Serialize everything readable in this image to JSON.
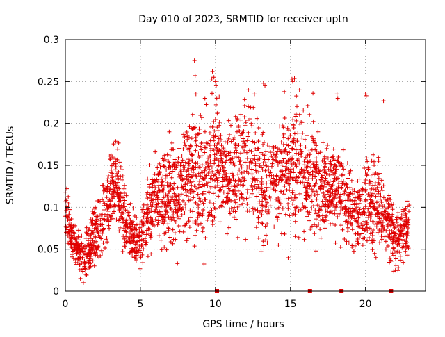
{
  "chart_data": {
    "type": "scatter",
    "title": "Day 010 of 2023, SRMTID for receiver uptn",
    "xlabel": "GPS time / hours",
    "ylabel": "SRMTID / TECUs",
    "xlim": [
      0,
      24
    ],
    "ylim": [
      0,
      0.3
    ],
    "xticks": [
      0,
      5,
      10,
      15,
      20
    ],
    "xtick_labels": [
      "0",
      "5",
      "10",
      "15",
      "20"
    ],
    "yticks": [
      0,
      0.05,
      0.1,
      0.15,
      0.2,
      0.25,
      0.3
    ],
    "ytick_labels": [
      "0",
      "0.05",
      "0.1",
      "0.15",
      "0.2",
      "0.25",
      "0.3"
    ],
    "grid": true,
    "marker": "+",
    "marker_color": "#e00000",
    "zero_markers_x": [
      10.1,
      16.3,
      18.4,
      21.7
    ],
    "envelope": {
      "description": "Approximate local centre and spread of the dense point cloud, sampled every 0.5 h (data units)",
      "x": [
        0,
        0.5,
        1,
        1.5,
        2,
        2.5,
        3,
        3.5,
        4,
        4.5,
        5,
        5.5,
        6,
        6.5,
        7,
        7.5,
        8,
        8.5,
        9,
        9.5,
        10,
        10.5,
        11,
        11.5,
        12,
        12.5,
        13,
        13.5,
        14,
        14.5,
        15,
        15.5,
        16,
        16.5,
        17,
        17.5,
        18,
        18.5,
        19,
        19.5,
        20,
        20.5,
        21,
        21.5,
        22,
        22.5,
        22.9
      ],
      "center": [
        0.095,
        0.06,
        0.04,
        0.045,
        0.065,
        0.08,
        0.12,
        0.13,
        0.08,
        0.06,
        0.065,
        0.09,
        0.11,
        0.11,
        0.12,
        0.115,
        0.13,
        0.14,
        0.12,
        0.14,
        0.16,
        0.14,
        0.13,
        0.14,
        0.16,
        0.15,
        0.12,
        0.13,
        0.13,
        0.14,
        0.14,
        0.15,
        0.13,
        0.14,
        0.12,
        0.12,
        0.12,
        0.11,
        0.1,
        0.09,
        0.1,
        0.11,
        0.1,
        0.08,
        0.065,
        0.07,
        0.08
      ],
      "spread": [
        0.02,
        0.015,
        0.015,
        0.02,
        0.025,
        0.03,
        0.03,
        0.03,
        0.025,
        0.02,
        0.025,
        0.03,
        0.035,
        0.035,
        0.035,
        0.035,
        0.04,
        0.05,
        0.045,
        0.05,
        0.05,
        0.04,
        0.04,
        0.045,
        0.05,
        0.045,
        0.04,
        0.04,
        0.04,
        0.045,
        0.05,
        0.05,
        0.04,
        0.04,
        0.035,
        0.035,
        0.035,
        0.035,
        0.03,
        0.03,
        0.035,
        0.035,
        0.03,
        0.025,
        0.02,
        0.02,
        0.02
      ]
    },
    "outliers": [
      {
        "x": 8.6,
        "y": 0.275
      },
      {
        "x": 8.65,
        "y": 0.257
      },
      {
        "x": 8.7,
        "y": 0.235
      },
      {
        "x": 9.3,
        "y": 0.23
      },
      {
        "x": 9.8,
        "y": 0.262
      },
      {
        "x": 9.9,
        "y": 0.255
      },
      {
        "x": 10.0,
        "y": 0.25
      },
      {
        "x": 10.05,
        "y": 0.245
      },
      {
        "x": 12.2,
        "y": 0.24
      },
      {
        "x": 12.6,
        "y": 0.235
      },
      {
        "x": 13.2,
        "y": 0.248
      },
      {
        "x": 13.3,
        "y": 0.245
      },
      {
        "x": 14.6,
        "y": 0.238
      },
      {
        "x": 15.1,
        "y": 0.253
      },
      {
        "x": 15.15,
        "y": 0.25
      },
      {
        "x": 15.6,
        "y": 0.24
      },
      {
        "x": 16.5,
        "y": 0.236
      },
      {
        "x": 18.1,
        "y": 0.235
      },
      {
        "x": 18.15,
        "y": 0.23
      },
      {
        "x": 20.0,
        "y": 0.235
      },
      {
        "x": 20.05,
        "y": 0.233
      },
      {
        "x": 21.2,
        "y": 0.227
      },
      {
        "x": 1.2,
        "y": 0.01
      },
      {
        "x": 1.0,
        "y": 0.015
      },
      {
        "x": 1.35,
        "y": 0.02
      },
      {
        "x": 20.7,
        "y": 0.04
      },
      {
        "x": 22.2,
        "y": 0.028
      }
    ],
    "generated_points_per_hour": 120,
    "random_seed": 10
  }
}
